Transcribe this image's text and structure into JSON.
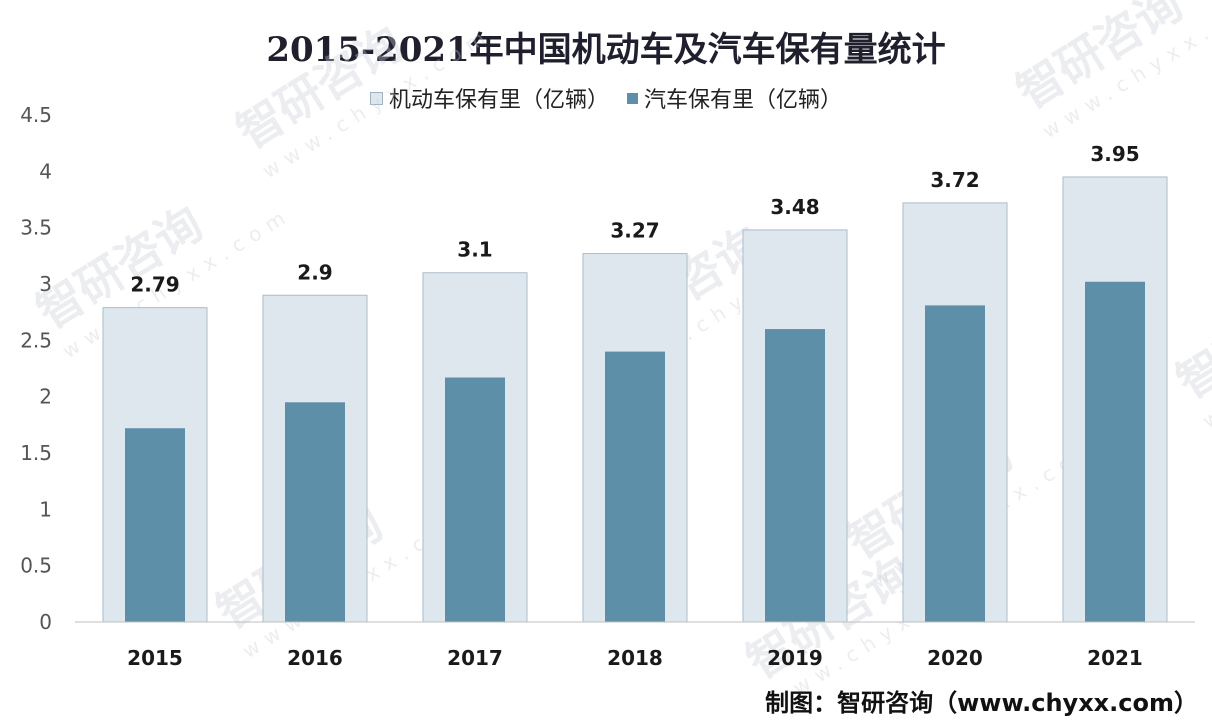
{
  "chart_data": {
    "type": "bar",
    "title": "2015-2021年中国机动车及汽车保有量统计",
    "categories": [
      "2015",
      "2016",
      "2017",
      "2018",
      "2019",
      "2020",
      "2021"
    ],
    "series": [
      {
        "name": "机动车保有里（亿辆）",
        "values": [
          2.79,
          2.9,
          3.1,
          3.27,
          3.48,
          3.72,
          3.95
        ],
        "color": "#dfe7ee"
      },
      {
        "name": "汽车保有里（亿辆）",
        "values": [
          1.72,
          1.95,
          2.17,
          2.4,
          2.6,
          2.81,
          3.02
        ],
        "color": "#5d8fa8"
      }
    ],
    "data_labels": [
      "2.79",
      "2.9",
      "3.1",
      "3.27",
      "3.48",
      "3.72",
      "3.95"
    ],
    "y_ticks": [
      "0",
      "0.5",
      "1",
      "1.5",
      "2",
      "2.5",
      "3",
      "3.5",
      "4",
      "4.5"
    ],
    "ylim": [
      0,
      4.5
    ],
    "grid": false,
    "legend_position": "top-center"
  },
  "source": "制图：智研咨询（www.chyxx.com）",
  "watermark": {
    "name": "智研咨询",
    "url": "www.chyxx.com"
  }
}
